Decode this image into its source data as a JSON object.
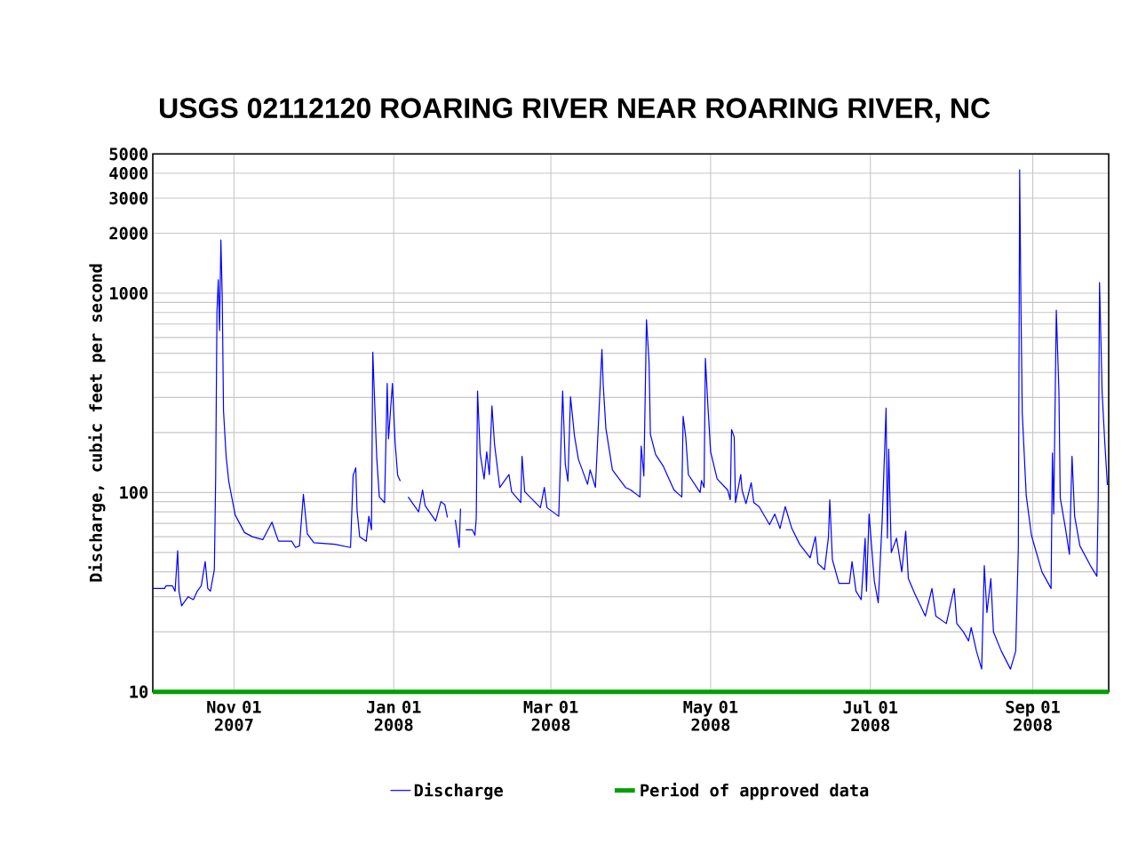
{
  "chart_data": {
    "type": "line",
    "title": "USGS 02112120 ROARING RIVER NEAR ROARING RIVER, NC",
    "ylabel": "Discharge, cubic feet per second",
    "xlim": [
      "2007-10-01",
      "2008-09-30"
    ],
    "xticks": [
      {
        "value": "2007-11-01",
        "label": "Nov 01 2007"
      },
      {
        "value": "2008-01-01",
        "label": "Jan 01 2008"
      },
      {
        "value": "2008-03-01",
        "label": "Mar 01 2008"
      },
      {
        "value": "2008-05-01",
        "label": "May 01 2008"
      },
      {
        "value": "2008-07-01",
        "label": "Jul 01 2008"
      },
      {
        "value": "2008-09-01",
        "label": "Sep 01 2008"
      }
    ],
    "ylim": [
      10,
      5000
    ],
    "yticks": [
      10,
      {
        "value": 20,
        "label": null
      },
      {
        "value": 30,
        "label": null
      },
      {
        "value": 40,
        "label": null
      },
      {
        "value": 50,
        "label": null
      },
      {
        "value": 60,
        "label": null
      },
      {
        "value": 70,
        "label": null
      },
      {
        "value": 80,
        "label": null
      },
      {
        "value": 90,
        "label": null
      },
      100,
      {
        "value": 200,
        "label": null
      },
      {
        "value": 300,
        "label": null
      },
      {
        "value": 400,
        "label": null
      },
      {
        "value": 500,
        "label": null
      },
      {
        "value": 600,
        "label": null
      },
      {
        "value": 700,
        "label": null
      },
      {
        "value": 800,
        "label": null
      },
      {
        "value": 900,
        "label": null
      },
      1000,
      2000,
      3000,
      4000,
      5000
    ],
    "log": "y",
    "grid": true,
    "legend": "bottom",
    "series": [
      {
        "name": "Discharge",
        "color": "#0000ff",
        "x": [
          "2007-10-01",
          "2007-10-05T12:00",
          "2007-10-06",
          "2007-10-08T12:00",
          "2007-10-09T12:00",
          "2007-10-10T12:00",
          "2007-10-11",
          "2007-10-12",
          "2007-10-14T12:00",
          "2007-10-16T12:00",
          "2007-10-18",
          "2007-10-19T12:00",
          "2007-10-21",
          "2007-10-22",
          "2007-10-23",
          "2007-10-24T12:00",
          "2007-10-25",
          "2007-10-25T12:00",
          "2007-10-26",
          "2007-10-26T12:00",
          "2007-10-27",
          "2007-10-27T12:00",
          "2007-10-28",
          "2007-10-29",
          "2007-10-30",
          "2007-10-31",
          "2007-11-01T12:00",
          "2007-11-05",
          "2007-11-08",
          "2007-11-12",
          "2007-11-15T12:00",
          "2007-11-17",
          "2007-11-18",
          "2007-11-23",
          "2007-11-24T12:00",
          "2007-11-26",
          "2007-11-27T12:00",
          "2007-11-29",
          "2007-12-01T12:00",
          "2007-12-09T12:00",
          "2007-12-15T12:00",
          "2007-12-16T12:00",
          "2007-12-17T12:00",
          "2007-12-18",
          "2007-12-19",
          "2007-12-21T12:00",
          "2007-12-22T12:00",
          "2007-12-23T12:00",
          "2007-12-24",
          "2007-12-25T12:00",
          "2007-12-26T12:00",
          "2007-12-28T12:00",
          "2007-12-29T12:00",
          "2007-12-30",
          "2007-12-31T12:00",
          "2008-01-01T12:00",
          "2008-01-02T12:00",
          "2008-01-03T12:00",
          "2008-01-05",
          "2008-01-06T12:00",
          "2008-01-10T12:00",
          "2008-01-12",
          "2008-01-13",
          "2008-01-17",
          "2008-01-19",
          "2008-01-20T12:00",
          "2008-01-21T12:00",
          "2008-01-23",
          "2008-01-24T12:00",
          "2008-01-26",
          "2008-01-26T12:00",
          "2008-01-27T12:00",
          "2008-01-28T12:00",
          "2008-01-31",
          "2008-02-01",
          "2008-02-01T12:00",
          "2008-02-02",
          "2008-02-03",
          "2008-02-04T12:00",
          "2008-02-05T12:00",
          "2008-02-06T12:00",
          "2008-02-07T12:00",
          "2008-02-08T12:00",
          "2008-02-10T12:00",
          "2008-02-14",
          "2008-02-15",
          "2008-02-18T12:00",
          "2008-02-19",
          "2008-02-20",
          "2008-02-26",
          "2008-02-27T12:00",
          "2008-02-28T12:00",
          "2008-03-04",
          "2008-03-05T12:00",
          "2008-03-06T12:00",
          "2008-03-07T12:00",
          "2008-03-08T12:00",
          "2008-03-10",
          "2008-03-11T12:00",
          "2008-03-15",
          "2008-03-16",
          "2008-03-18",
          "2008-03-20T12:00",
          "2008-03-21",
          "2008-03-22",
          "2008-03-24T12:00",
          "2008-03-29T12:00",
          "2008-03-31T12:00",
          "2008-04-04",
          "2008-04-04T12:00",
          "2008-04-05T12:00",
          "2008-04-06T12:00",
          "2008-04-07T12:00",
          "2008-04-08",
          "2008-04-10",
          "2008-04-13",
          "2008-04-17",
          "2008-04-20",
          "2008-04-20T12:00",
          "2008-04-21T12:00",
          "2008-04-22T12:00",
          "2008-04-27",
          "2008-04-27T12:00",
          "2008-04-28T12:00",
          "2008-04-29",
          "2008-04-30",
          "2008-05-01",
          "2008-05-03T12:00",
          "2008-05-07T12:00",
          "2008-05-08T12:00",
          "2008-05-09",
          "2008-05-10",
          "2008-05-10T12:00",
          "2008-05-12T12:00",
          "2008-05-13",
          "2008-05-14T12:00",
          "2008-05-16T12:00",
          "2008-05-17T12:00",
          "2008-05-19T12:00",
          "2008-05-23T12:00",
          "2008-05-25T12:00",
          "2008-05-27T12:00",
          "2008-05-29T12:00",
          "2008-06-01",
          "2008-06-04",
          "2008-06-08",
          "2008-06-10",
          "2008-06-11",
          "2008-06-13T12:00",
          "2008-06-15",
          "2008-06-15T12:00",
          "2008-06-16T12:00",
          "2008-06-19",
          "2008-06-23",
          "2008-06-24",
          "2008-06-25T12:00",
          "2008-06-27T12:00",
          "2008-06-29",
          "2008-06-29T12:00",
          "2008-06-30T12:00",
          "2008-07-02T12:00",
          "2008-07-04",
          "2008-07-05T12:00",
          "2008-07-07",
          "2008-07-07T12:00",
          "2008-07-08",
          "2008-07-09",
          "2008-07-11",
          "2008-07-13",
          "2008-07-14T12:00",
          "2008-07-15T12:00",
          "2008-07-18",
          "2008-07-22",
          "2008-07-24T12:00",
          "2008-07-26",
          "2008-07-30",
          "2008-08-01",
          "2008-08-02",
          "2008-08-03",
          "2008-08-05T12:00",
          "2008-08-07T12:00",
          "2008-08-08T12:00",
          "2008-08-10T12:00",
          "2008-08-12T12:00",
          "2008-08-13T12:00",
          "2008-08-14T12:00",
          "2008-08-16",
          "2008-08-17",
          "2008-08-20",
          "2008-08-23T12:00",
          "2008-08-25T12:00",
          "2008-08-26T12:00",
          "2008-08-27",
          "2008-08-27T12:00",
          "2008-08-28",
          "2008-08-29T12:00",
          "2008-08-31T12:00",
          "2008-09-04T12:00",
          "2008-09-08",
          "2008-09-08T12:00",
          "2008-09-09",
          "2008-09-10",
          "2008-09-11",
          "2008-09-11T12:00",
          "2008-09-13T12:00",
          "2008-09-15",
          "2008-09-16",
          "2008-09-17",
          "2008-09-19",
          "2008-09-23",
          "2008-09-25T12:00",
          "2008-09-26",
          "2008-09-26T12:00",
          "2008-09-27T12:00",
          "2008-09-28T12:00",
          "2008-09-29T12:00"
        ],
        "values": [
          33,
          33,
          34,
          34,
          32,
          51,
          32,
          27,
          30,
          29,
          32,
          34,
          45,
          33,
          32,
          41,
          117,
          800,
          1170,
          650,
          1850,
          980,
          257,
          152,
          114,
          97,
          77,
          63,
          60,
          58,
          71,
          62,
          57,
          57,
          53,
          54,
          98,
          62,
          56,
          55,
          53,
          122,
          133,
          81,
          60,
          57,
          76,
          65,
          507,
          150,
          95,
          89,
          353,
          186,
          353,
          180,
          122,
          114,
          null,
          95,
          80,
          103,
          86,
          72,
          90,
          87,
          75,
          null,
          73,
          53,
          83,
          null,
          65,
          65,
          61,
          74,
          323,
          157,
          117,
          160,
          123,
          272,
          174,
          106,
          123,
          101,
          89,
          152,
          101,
          84,
          106,
          84,
          76,
          323,
          139,
          114,
          302,
          193,
          147,
          110,
          130,
          106,
          522,
          346,
          210,
          130,
          106,
          103,
          95,
          171,
          121,
          736,
          448,
          196,
          155,
          135,
          103,
          95,
          241,
          190,
          123,
          100,
          115,
          106,
          471,
          267,
          160,
          117,
          103,
          92,
          207,
          190,
          89,
          123,
          103,
          88,
          112,
          89,
          85,
          69,
          78,
          66,
          85,
          66,
          55,
          47,
          60,
          44,
          41,
          60,
          92,
          46,
          35,
          35,
          45,
          32,
          29,
          59,
          32,
          78,
          36,
          28,
          72,
          265,
          59,
          165,
          50,
          59,
          40,
          64,
          37,
          31,
          24,
          33,
          24,
          22,
          29,
          33,
          22,
          20,
          18,
          21,
          16,
          13,
          43,
          25,
          37,
          20,
          16,
          13,
          16,
          53,
          4170,
          838,
          250,
          97,
          61,
          40,
          33,
          158,
          78,
          822,
          317,
          94,
          66,
          49,
          152,
          76,
          54,
          43,
          38,
          93,
          1130,
          317,
          179,
          109
        ]
      },
      {
        "name": "Period of approved data",
        "color": "#00a000",
        "x": [
          "2007-10-01",
          "2008-09-30"
        ],
        "values": [
          10,
          10
        ]
      }
    ]
  }
}
